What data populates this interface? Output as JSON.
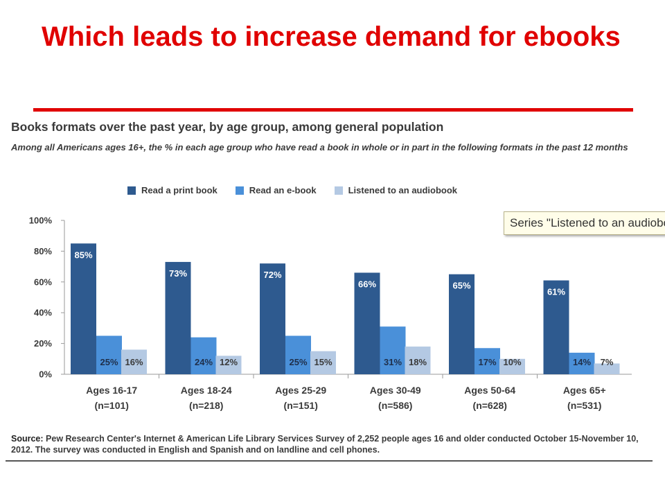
{
  "slide": {
    "title": "Which leads to increase demand for ebooks"
  },
  "chart_data": {
    "type": "bar",
    "title": "Books formats over the past year, by age group, among general population",
    "subtitle": "Among all Americans ages 16+, the % in each age group who have read a book in whole or in part in the following formats in the past 12 months",
    "categories": [
      "Ages 16-17",
      "Ages 18-24",
      "Ages 25-29",
      "Ages 30-49",
      "Ages 50-64",
      "Ages 65+"
    ],
    "category_sublabels": [
      "(n=101)",
      "(n=218)",
      "(n=151)",
      "(n=586)",
      "(n=628)",
      "(n=531)"
    ],
    "series": [
      {
        "name": "Read a print book",
        "values": [
          85,
          73,
          72,
          66,
          65,
          61
        ],
        "color": "#2e5a8f",
        "labels": [
          "85%",
          "73%",
          "72%",
          "66%",
          "65%",
          "61%"
        ]
      },
      {
        "name": "Read an e-book",
        "values": [
          25,
          24,
          25,
          31,
          17,
          14
        ],
        "color": "#4a90d9",
        "labels": [
          "25%",
          "24%",
          "25%",
          "31%",
          "17%",
          "14%"
        ]
      },
      {
        "name": "Listened to an audiobook",
        "values": [
          16,
          12,
          15,
          18,
          10,
          7
        ],
        "color": "#b4c9e3",
        "labels": [
          "16%",
          "12%",
          "15%",
          "18%",
          "10%",
          "7%"
        ]
      }
    ],
    "yticks": [
      "0%",
      "20%",
      "40%",
      "60%",
      "80%",
      "100%"
    ],
    "ylim": [
      0,
      100
    ],
    "xlabel": "",
    "ylabel": "",
    "legend_position": "top",
    "grid": false,
    "tooltip": "Series \"Listened to an audiobook\""
  },
  "source": {
    "label": "Source:",
    "text": "Pew Research Center's Internet & American Life Library Services Survey of 2,252 people ages 16 and older conducted October 15-November 10, 2012. The survey was conducted in English and Spanish and on landline and cell phones."
  }
}
